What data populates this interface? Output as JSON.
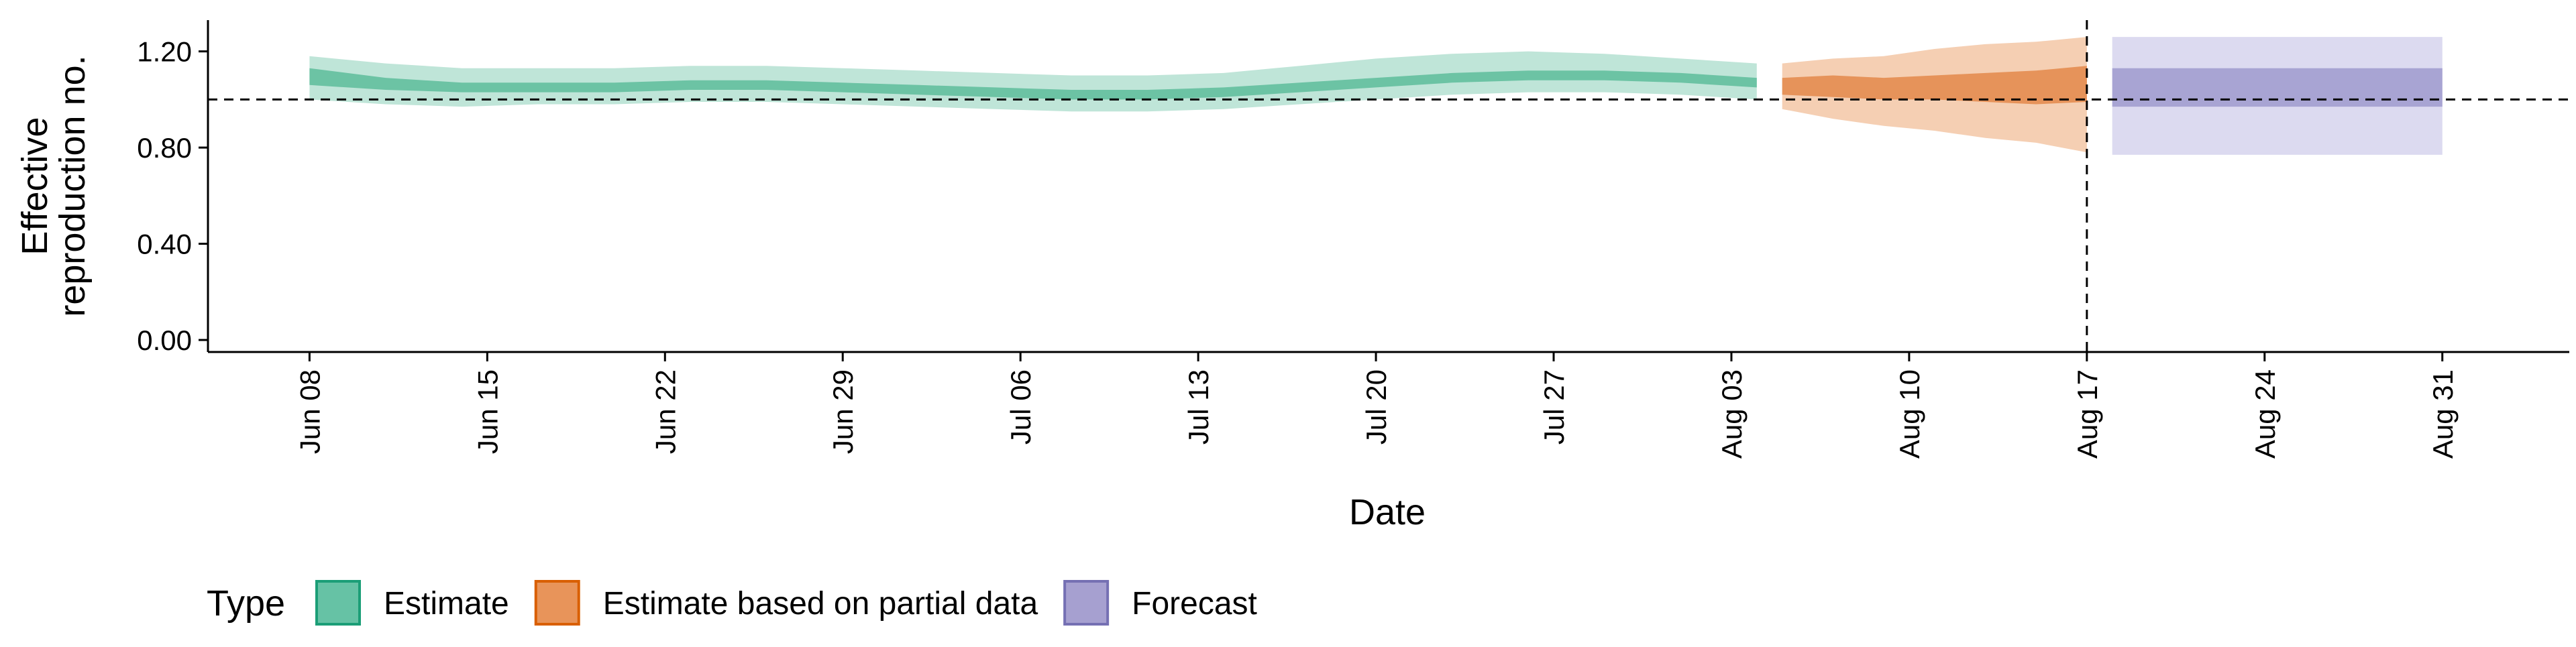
{
  "chart_data": {
    "type": "area",
    "xlabel": "Date",
    "ylabel_lines": [
      "Effective",
      "reproduction no."
    ],
    "ylim": [
      -0.05,
      1.33
    ],
    "y_ticks": [
      0.0,
      0.4,
      0.8,
      1.2
    ],
    "y_tick_labels": [
      "0.00",
      "0.40",
      "0.80",
      "1.20"
    ],
    "x_tick_dates": [
      "2020-06-08",
      "2020-06-15",
      "2020-06-22",
      "2020-06-29",
      "2020-07-06",
      "2020-07-13",
      "2020-07-20",
      "2020-07-27",
      "2020-08-03",
      "2020-08-10",
      "2020-08-17",
      "2020-08-24",
      "2020-08-31"
    ],
    "x_tick_labels": [
      "Jun 08",
      "Jun 15",
      "Jun 22",
      "Jun 29",
      "Jul 06",
      "Jul 13",
      "Jul 20",
      "Jul 27",
      "Aug 03",
      "Aug 10",
      "Aug 17",
      "Aug 24",
      "Aug 31"
    ],
    "xlim": [
      "2020-06-04",
      "2020-09-05"
    ],
    "reference_hline": 1.0,
    "reference_vline": "2020-08-17",
    "legend": {
      "title": "Type",
      "position": "bottom-left",
      "items": [
        {
          "label": "Estimate",
          "color": "#66c2a5",
          "border": "#1b9e77"
        },
        {
          "label": "Estimate based on partial data",
          "color": "#e8945a",
          "border": "#d95f02"
        },
        {
          "label": "Forecast",
          "color": "#a6a0d0",
          "border": "#7570b3"
        }
      ]
    },
    "series": [
      {
        "name": "Estimate",
        "color_outer": "#bfe5d8",
        "color_inner": "#6cc3a4",
        "x": [
          "2020-06-08",
          "2020-06-11",
          "2020-06-14",
          "2020-06-17",
          "2020-06-20",
          "2020-06-23",
          "2020-06-26",
          "2020-06-29",
          "2020-07-02",
          "2020-07-05",
          "2020-07-08",
          "2020-07-11",
          "2020-07-14",
          "2020-07-17",
          "2020-07-20",
          "2020-07-23",
          "2020-07-26",
          "2020-07-29",
          "2020-08-01",
          "2020-08-04"
        ],
        "upper90": [
          1.18,
          1.15,
          1.13,
          1.13,
          1.13,
          1.14,
          1.14,
          1.13,
          1.12,
          1.11,
          1.1,
          1.1,
          1.11,
          1.14,
          1.17,
          1.19,
          1.2,
          1.19,
          1.17,
          1.15
        ],
        "upper50": [
          1.13,
          1.09,
          1.07,
          1.07,
          1.07,
          1.08,
          1.08,
          1.07,
          1.06,
          1.05,
          1.04,
          1.04,
          1.05,
          1.07,
          1.09,
          1.11,
          1.12,
          1.12,
          1.11,
          1.09
        ],
        "lower50": [
          1.06,
          1.04,
          1.03,
          1.03,
          1.03,
          1.04,
          1.04,
          1.03,
          1.02,
          1.01,
          1.0,
          1.0,
          1.01,
          1.03,
          1.05,
          1.07,
          1.08,
          1.08,
          1.07,
          1.05
        ],
        "lower90": [
          1.0,
          0.98,
          0.97,
          0.98,
          0.98,
          0.99,
          0.99,
          0.98,
          0.97,
          0.96,
          0.95,
          0.95,
          0.96,
          0.98,
          1.0,
          1.02,
          1.03,
          1.03,
          1.02,
          1.0
        ]
      },
      {
        "name": "Estimate based on partial data",
        "color_outer": "#f5cfb3",
        "color_inner": "#e6935a",
        "x": [
          "2020-08-05",
          "2020-08-07",
          "2020-08-09",
          "2020-08-11",
          "2020-08-13",
          "2020-08-15",
          "2020-08-17"
        ],
        "upper90": [
          1.15,
          1.17,
          1.18,
          1.21,
          1.23,
          1.24,
          1.26
        ],
        "upper50": [
          1.09,
          1.1,
          1.09,
          1.1,
          1.11,
          1.12,
          1.14
        ],
        "lower50": [
          1.02,
          1.01,
          1.0,
          1.0,
          0.99,
          0.98,
          0.99
        ],
        "lower90": [
          0.96,
          0.92,
          0.89,
          0.87,
          0.84,
          0.82,
          0.78
        ]
      },
      {
        "name": "Forecast",
        "color_outer": "#dcdaf0",
        "color_inner": "#a8a4d3",
        "x": [
          "2020-08-18",
          "2020-08-31"
        ],
        "upper90": [
          1.26,
          1.26
        ],
        "upper50": [
          1.13,
          1.13
        ],
        "lower50": [
          0.97,
          0.97
        ],
        "lower90": [
          0.77,
          0.77
        ]
      }
    ]
  }
}
